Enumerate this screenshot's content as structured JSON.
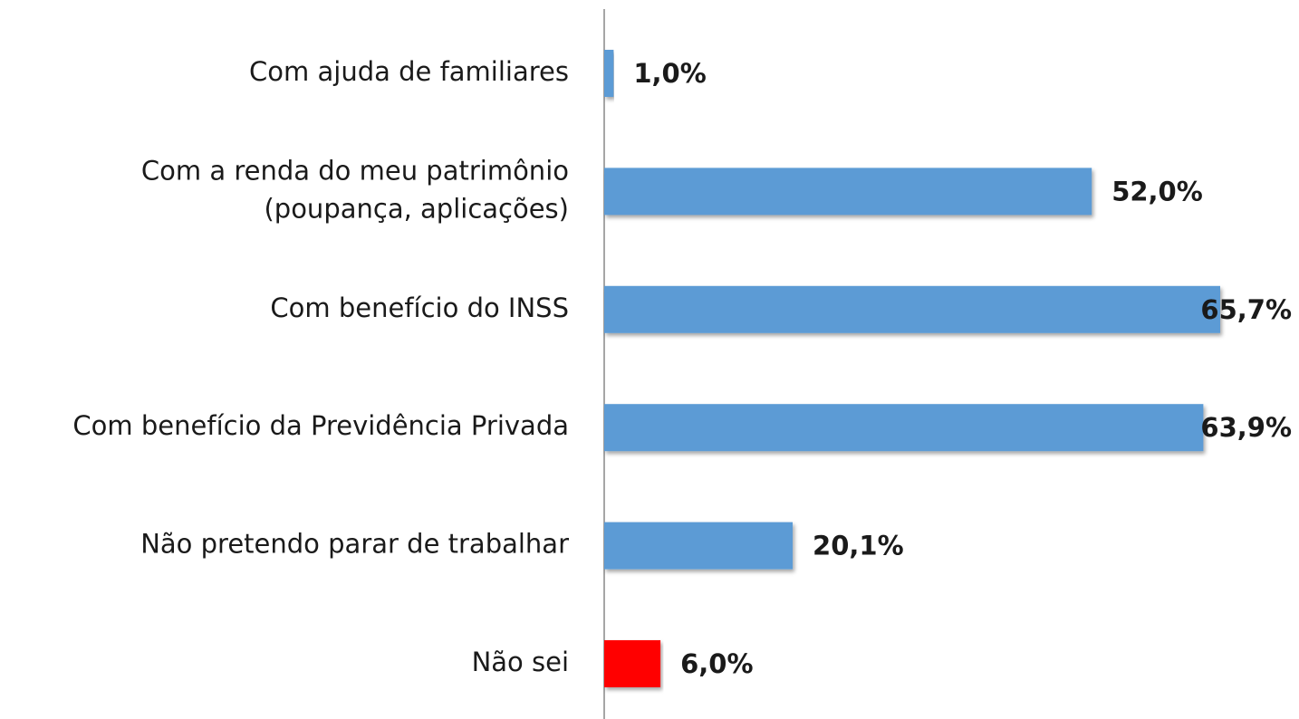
{
  "chart_data": {
    "type": "bar",
    "orientation": "horizontal",
    "categories": [
      "Com ajuda de familiares",
      "Com a renda do meu patrimônio\n(poupança, aplicações)",
      "Com benefício do INSS",
      "Com benefício da Previdência Privada",
      "Não pretendo parar de trabalhar",
      "Não sei"
    ],
    "values": [
      1.0,
      52.0,
      65.7,
      63.9,
      20.1,
      6.0
    ],
    "value_labels": [
      "1,0%",
      "52,0%",
      "65,7%",
      "63,9%",
      "20,1%",
      "6,0%"
    ],
    "colors": [
      "#5b9bd5",
      "#5b9bd5",
      "#5b9bd5",
      "#5b9bd5",
      "#5b9bd5",
      "#ff0000"
    ]
  }
}
